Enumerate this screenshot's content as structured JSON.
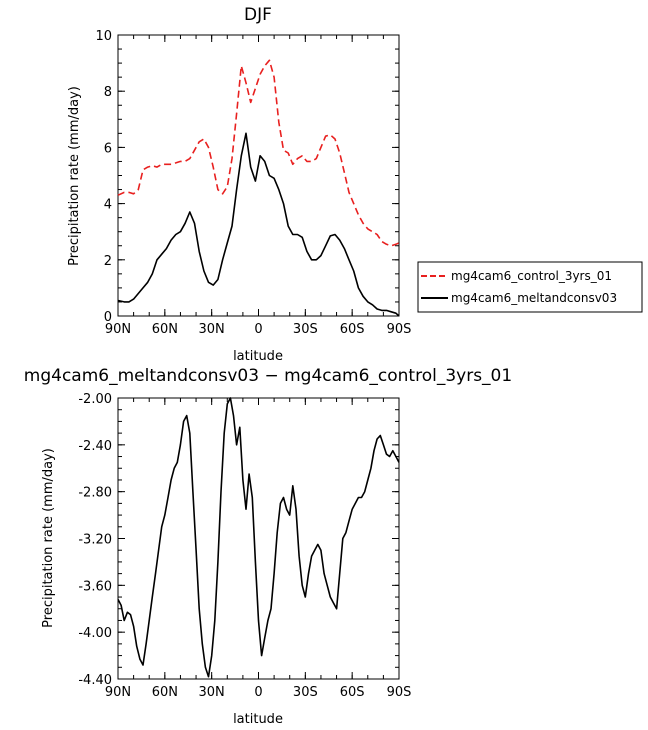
{
  "chart_data": [
    {
      "type": "line",
      "title": "DJF",
      "xlabel": "latitude",
      "ylabel": "Precipitation rate (mm/day)",
      "xlim": [
        90,
        -90
      ],
      "ylim": [
        0,
        10
      ],
      "xticks": [
        90,
        60,
        30,
        0,
        -30,
        -60,
        -90
      ],
      "xtick_labels": [
        "90N",
        "60N",
        "30N",
        "0",
        "30S",
        "60S",
        "90S"
      ],
      "yticks": [
        0,
        2,
        4,
        6,
        8,
        10
      ],
      "ytick_labels": [
        "0",
        "2",
        "4",
        "6",
        "8",
        "10"
      ],
      "grid": false,
      "legend": "right",
      "series": [
        {
          "name": "mg4cam6_control_3yrs_01",
          "color": "#e8201f",
          "dash": "dashed",
          "x": [
            90,
            86,
            83,
            80,
            77,
            74,
            71,
            68,
            65,
            62,
            59,
            56,
            53,
            50,
            47,
            44,
            41,
            38,
            35,
            32,
            29,
            26,
            23,
            20,
            17,
            14,
            11,
            8,
            5,
            2,
            -1,
            -4,
            -7,
            -10,
            -13,
            -16,
            -19,
            -22,
            -25,
            -28,
            -31,
            -34,
            -37,
            -40,
            -43,
            -46,
            -49,
            -52,
            -55,
            -58,
            -61,
            -64,
            -67,
            -70,
            -73,
            -76,
            -79,
            -82,
            -85,
            -88,
            -90
          ],
          "y": [
            4.3,
            4.4,
            4.4,
            4.35,
            4.5,
            5.2,
            5.3,
            5.35,
            5.3,
            5.4,
            5.4,
            5.4,
            5.45,
            5.5,
            5.5,
            5.6,
            5.9,
            6.2,
            6.3,
            6.0,
            5.3,
            4.5,
            4.35,
            4.6,
            5.6,
            7.2,
            8.9,
            8.3,
            7.6,
            8.1,
            8.6,
            8.9,
            9.1,
            8.5,
            6.9,
            5.9,
            5.8,
            5.4,
            5.6,
            5.7,
            5.5,
            5.5,
            5.6,
            6.0,
            6.4,
            6.45,
            6.3,
            5.8,
            5.1,
            4.4,
            4.0,
            3.6,
            3.3,
            3.1,
            3.0,
            2.9,
            2.65,
            2.55,
            2.5,
            2.55,
            2.6
          ]
        },
        {
          "name": "mg4cam6_meltandconsv03",
          "color": "#000000",
          "dash": "solid",
          "x": [
            90,
            86,
            83,
            80,
            77,
            74,
            71,
            68,
            65,
            62,
            59,
            56,
            53,
            50,
            47,
            44,
            41,
            38,
            35,
            32,
            29,
            26,
            23,
            20,
            17,
            14,
            11,
            8,
            5,
            2,
            -1,
            -4,
            -7,
            -10,
            -13,
            -16,
            -19,
            -22,
            -25,
            -28,
            -31,
            -34,
            -37,
            -40,
            -43,
            -46,
            -49,
            -52,
            -55,
            -58,
            -61,
            -64,
            -67,
            -70,
            -73,
            -76,
            -79,
            -82,
            -85,
            -88,
            -90
          ],
          "y": [
            0.55,
            0.5,
            0.5,
            0.6,
            0.8,
            1.0,
            1.2,
            1.5,
            2.0,
            2.2,
            2.4,
            2.7,
            2.9,
            3.0,
            3.3,
            3.7,
            3.3,
            2.3,
            1.6,
            1.2,
            1.1,
            1.3,
            2.0,
            2.6,
            3.2,
            4.5,
            5.7,
            6.5,
            5.3,
            4.8,
            5.7,
            5.5,
            5.0,
            4.9,
            4.5,
            4.0,
            3.2,
            2.9,
            2.9,
            2.8,
            2.3,
            2.0,
            2.0,
            2.15,
            2.5,
            2.85,
            2.9,
            2.7,
            2.4,
            2.0,
            1.6,
            1.0,
            0.7,
            0.5,
            0.4,
            0.25,
            0.2,
            0.2,
            0.15,
            0.1,
            0.0
          ]
        }
      ]
    },
    {
      "type": "line",
      "title": "mg4cam6_meltandconsv03 − mg4cam6_control_3yrs_01",
      "xlabel": "latitude",
      "ylabel": "Precipitation rate (mm/day)",
      "xlim": [
        90,
        -90
      ],
      "ylim": [
        -4.4,
        -2.0
      ],
      "xticks": [
        90,
        60,
        30,
        0,
        -30,
        -60,
        -90
      ],
      "xtick_labels": [
        "90N",
        "60N",
        "30N",
        "0",
        "30S",
        "60S",
        "90S"
      ],
      "yticks": [
        -4.4,
        -4.0,
        -3.6,
        -3.2,
        -2.8,
        -2.4,
        -2.0
      ],
      "ytick_labels": [
        "-4.40",
        "-4.00",
        "-3.60",
        "-3.20",
        "-2.80",
        "-2.40",
        "-2.00"
      ],
      "grid": false,
      "series": [
        {
          "name": "",
          "color": "#000000",
          "dash": "solid",
          "x": [
            90,
            88,
            86,
            84,
            82,
            80,
            78,
            76,
            74,
            72,
            70,
            68,
            66,
            64,
            62,
            60,
            58,
            56,
            54,
            52,
            50,
            48,
            46,
            44,
            42,
            40,
            38,
            36,
            34,
            32,
            30,
            28,
            26,
            24,
            22,
            20,
            18,
            16,
            14,
            12,
            10,
            8,
            6,
            4,
            2,
            0,
            -2,
            -4,
            -6,
            -8,
            -10,
            -12,
            -14,
            -16,
            -18,
            -20,
            -22,
            -24,
            -26,
            -28,
            -30,
            -32,
            -34,
            -36,
            -38,
            -40,
            -42,
            -44,
            -46,
            -48,
            -50,
            -52,
            -54,
            -56,
            -58,
            -60,
            -62,
            -64,
            -66,
            -68,
            -70,
            -72,
            -74,
            -76,
            -78,
            -80,
            -82,
            -84,
            -86,
            -88,
            -90
          ],
          "y": [
            -3.72,
            -3.77,
            -3.9,
            -3.83,
            -3.85,
            -3.95,
            -4.12,
            -4.23,
            -4.28,
            -4.1,
            -3.9,
            -3.7,
            -3.5,
            -3.3,
            -3.1,
            -3.0,
            -2.85,
            -2.7,
            -2.6,
            -2.55,
            -2.4,
            -2.2,
            -2.15,
            -2.3,
            -2.8,
            -3.3,
            -3.8,
            -4.1,
            -4.3,
            -4.38,
            -4.2,
            -3.9,
            -3.4,
            -2.8,
            -2.3,
            -2.05,
            -2.0,
            -2.15,
            -2.4,
            -2.25,
            -2.7,
            -2.95,
            -2.65,
            -2.85,
            -3.4,
            -3.9,
            -4.2,
            -4.05,
            -3.9,
            -3.8,
            -3.5,
            -3.15,
            -2.9,
            -2.85,
            -2.95,
            -3.0,
            -2.75,
            -2.95,
            -3.35,
            -3.6,
            -3.7,
            -3.5,
            -3.35,
            -3.3,
            -3.25,
            -3.3,
            -3.5,
            -3.6,
            -3.7,
            -3.75,
            -3.8,
            -3.5,
            -3.2,
            -3.15,
            -3.05,
            -2.95,
            -2.9,
            -2.85,
            -2.85,
            -2.8,
            -2.7,
            -2.6,
            -2.45,
            -2.35,
            -2.32,
            -2.4,
            -2.48,
            -2.5,
            -2.45,
            -2.5,
            -2.55
          ]
        }
      ]
    }
  ]
}
